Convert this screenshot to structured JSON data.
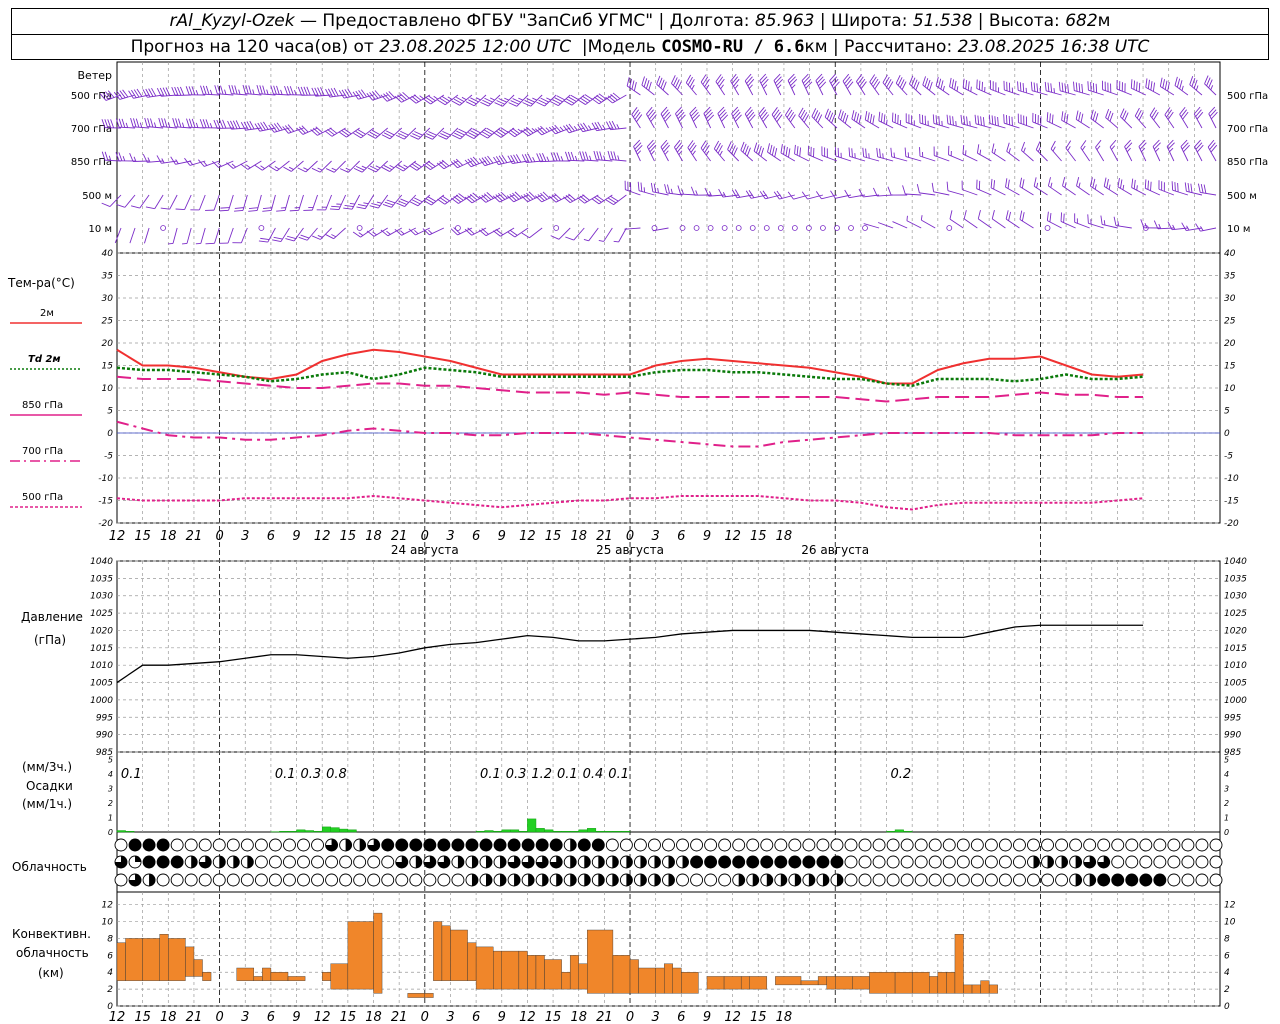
{
  "header": {
    "station": "rAl_Kyzyl-Ozek",
    "dash": " — ",
    "provider_label": "Предоставлено ФГБУ \"ЗапСиб УГМС\"",
    "lon_label": "Долгота:",
    "lon_value": "85.963",
    "lat_label": "Широта:",
    "lat_value": "51.538",
    "alt_label": "Высота:",
    "alt_value": "682",
    "alt_unit": "м",
    "forecast_prefix": "Прогноз на 120 часа(ов) от",
    "forecast_from": "23.08.2025 12:00 UTC",
    "model_label": "Модель",
    "model_name": "COSMO-RU / 6.6",
    "model_unit": "км",
    "calc_label": "Рассчитано:",
    "calc_time": "23.08.2025 16:38 UTC",
    "sep": "|"
  },
  "wind_panel": {
    "title": "Ветер",
    "levels": [
      "500 гПа",
      "700 гПа",
      "850 гПа",
      "500 м",
      "10 м"
    ]
  },
  "temp_panel": {
    "title": "Тем-ра(°C)",
    "legend": [
      {
        "label": "2м",
        "color": "#f03030",
        "style": "solid"
      },
      {
        "label": "Td 2м",
        "color": "#0a7a0a",
        "style": "dotted"
      },
      {
        "label": "850 гПа",
        "color": "#e0208a",
        "style": "dashed"
      },
      {
        "label": "700 гПа",
        "color": "#e0208a",
        "style": "dashdot"
      },
      {
        "label": "500 гПа",
        "color": "#e0208a",
        "style": "dotted"
      }
    ],
    "yticks": [
      "40",
      "35",
      "30",
      "25",
      "20",
      "15",
      "10",
      "5",
      "0",
      "-5",
      "-10",
      "-15",
      "-20"
    ]
  },
  "pressure_panel": {
    "title": "Давление",
    "unit": "(гПа)",
    "yticks": [
      "1040",
      "1035",
      "1030",
      "1025",
      "1020",
      "1015",
      "1010",
      "1005",
      "1000",
      "995",
      "990",
      "985"
    ]
  },
  "precip_panel": {
    "title_left": "(мм/3ч.)",
    "title_mid": "Осадки",
    "title_unit": "(мм/1ч.)",
    "yticks": [
      "5",
      "4",
      "3",
      "2",
      "1",
      "0"
    ],
    "labels": [
      {
        "hour": 0.5,
        "text": "0.1"
      },
      {
        "hour": 18.5,
        "text": "0.1"
      },
      {
        "hour": 21.5,
        "text": "0.3"
      },
      {
        "hour": 24.5,
        "text": "0.8"
      },
      {
        "hour": 42.5,
        "text": "0.1"
      },
      {
        "hour": 45.5,
        "text": "0.3"
      },
      {
        "hour": 48.5,
        "text": "1.2"
      },
      {
        "hour": 51.5,
        "text": "0.1"
      },
      {
        "hour": 54.5,
        "text": "0.4"
      },
      {
        "hour": 57.5,
        "text": "0.1"
      },
      {
        "hour": 90.5,
        "text": "0.2"
      }
    ]
  },
  "cloud_panel": {
    "title": "Облачность"
  },
  "conv_panel": {
    "title_1": "Конвективн.",
    "title_2": "облачность",
    "title_3": "(км)",
    "yticks": [
      "12",
      "10",
      "8",
      "6",
      "4",
      "2",
      "0"
    ]
  },
  "time_axis": {
    "hours": [
      "12",
      "15",
      "18",
      "21",
      "0",
      "3",
      "6",
      "9",
      "12",
      "15",
      "18",
      "21",
      "0",
      "3",
      "6",
      "9",
      "12",
      "15",
      "18",
      "21",
      "0",
      "3",
      "6",
      "9",
      "12",
      "15",
      "18"
    ],
    "dates": [
      {
        "hour": 24,
        "text": "24 августа"
      },
      {
        "hour": 48,
        "text": "25 августа"
      },
      {
        "hour": 72,
        "text": "26 августа"
      }
    ]
  },
  "colors": {
    "wind_barb": "#7b2cc8",
    "t2m": "#f03030",
    "td2m": "#0a7a0a",
    "upper_air": "#e0208a",
    "pressure": "#000000",
    "precip": "#22d022",
    "convective": "#f0862a",
    "grid": "#9a9a9a"
  },
  "chart_data": [
    {
      "type": "line",
      "title": "Тем-ра(°C)",
      "ylim": [
        -20,
        40
      ],
      "x_hours_from_start": [
        0,
        3,
        6,
        9,
        12,
        15,
        18,
        21,
        24,
        27,
        30,
        33,
        36,
        39,
        42,
        45,
        48,
        51,
        54,
        57,
        60,
        63,
        66,
        69,
        72,
        75,
        78,
        81,
        84,
        87,
        90,
        93,
        96,
        99,
        102,
        105,
        108,
        111,
        114,
        117,
        120
      ],
      "series": [
        {
          "name": "2м",
          "values": [
            18.5,
            15,
            15,
            14.5,
            13.5,
            12.5,
            12,
            13,
            16,
            17.5,
            18.5,
            18,
            17,
            16,
            14.5,
            13,
            13,
            13,
            13,
            13,
            13,
            15,
            16,
            16.5,
            16,
            15.5,
            15,
            14.5,
            13.5,
            12.5,
            11,
            11,
            14,
            15.5,
            16.5,
            16.5,
            17,
            15,
            13,
            12.5,
            13
          ]
        },
        {
          "name": "Td 2м",
          "values": [
            14.5,
            14,
            14,
            13.5,
            13,
            12.5,
            11.5,
            12,
            13,
            13.5,
            12,
            13,
            14.5,
            14,
            13.5,
            12.5,
            12.5,
            12.5,
            12.5,
            12.5,
            12.5,
            13.5,
            14,
            14,
            13.5,
            13.5,
            13,
            12.5,
            12,
            12,
            11,
            10.5,
            12,
            12,
            12,
            11.5,
            12,
            13,
            12,
            12,
            12.5
          ]
        },
        {
          "name": "850 гПа",
          "values": [
            12.5,
            12,
            12,
            12,
            11.5,
            11,
            10.5,
            10,
            10,
            10.5,
            11,
            11,
            10.5,
            10.5,
            10,
            9.5,
            9,
            9,
            9,
            8.5,
            9,
            8.5,
            8,
            8,
            8,
            8,
            8,
            8,
            8,
            7.5,
            7,
            7.5,
            8,
            8,
            8,
            8.5,
            9,
            8.5,
            8.5,
            8,
            8
          ]
        },
        {
          "name": "700 гПа",
          "values": [
            2.5,
            1,
            -0.5,
            -1,
            -1,
            -1.5,
            -1.5,
            -1,
            -0.5,
            0.5,
            1,
            0.5,
            0,
            0,
            -0.5,
            -0.5,
            0,
            0,
            0,
            -0.5,
            -1,
            -1.5,
            -2,
            -2.5,
            -3,
            -3,
            -2,
            -1.5,
            -1,
            -0.5,
            0,
            0,
            0,
            0,
            0,
            -0.5,
            -0.5,
            -0.5,
            -0.5,
            0,
            0
          ]
        },
        {
          "name": "500 гПа",
          "values": [
            -14.5,
            -15,
            -15,
            -15,
            -15,
            -14.5,
            -14.5,
            -14.5,
            -14.5,
            -14.5,
            -14,
            -14.5,
            -15,
            -15.5,
            -16,
            -16.5,
            -16,
            -15.5,
            -15,
            -15,
            -14.5,
            -14.5,
            -14,
            -14,
            -14,
            -14,
            -14.5,
            -15,
            -15,
            -15.5,
            -16.5,
            -17,
            -16,
            -15.5,
            -15.5,
            -15.5,
            -15.5,
            -15.5,
            -15.5,
            -15,
            -14.5
          ]
        }
      ]
    },
    {
      "type": "line",
      "title": "Давление",
      "ylabel": "(гПа)",
      "ylim": [
        985,
        1040
      ],
      "x_hours_from_start": [
        0,
        3,
        6,
        9,
        12,
        15,
        18,
        21,
        24,
        27,
        30,
        33,
        36,
        39,
        42,
        45,
        48,
        51,
        54,
        57,
        60,
        63,
        66,
        69,
        72,
        75,
        78,
        81,
        84,
        87,
        90,
        93,
        96,
        99,
        102,
        105,
        108,
        111,
        114,
        117,
        120
      ],
      "series": [
        {
          "name": "Давление",
          "values": [
            1005,
            1010,
            1010,
            1010.5,
            1011,
            1012,
            1013,
            1013,
            1012.5,
            1012,
            1012.5,
            1013.5,
            1015,
            1016,
            1016.5,
            1017.5,
            1018.5,
            1018,
            1017,
            1017,
            1017.5,
            1018,
            1019,
            1019.5,
            1020,
            1020,
            1020,
            1020,
            1019.5,
            1019,
            1018.5,
            1018,
            1018,
            1018,
            1019.5,
            1021,
            1021.5,
            1021.5,
            1021.5,
            1021.5,
            1021.5
          ]
        }
      ]
    },
    {
      "type": "bar",
      "title": "Осадки",
      "ylabel": "(мм/1ч.)",
      "ylim": [
        0,
        5
      ],
      "x_hours_from_start": [
        0,
        1,
        2,
        18,
        19,
        20,
        21,
        22,
        23,
        24,
        25,
        26,
        27,
        28,
        29,
        42,
        43,
        44,
        45,
        46,
        47,
        48,
        49,
        50,
        51,
        52,
        53,
        54,
        55,
        56,
        57,
        58,
        59,
        90,
        91,
        92
      ],
      "values": [
        0.1,
        0.05,
        0,
        0.02,
        0.05,
        0.05,
        0.15,
        0.1,
        0.05,
        0.35,
        0.3,
        0.2,
        0.15,
        0,
        0,
        0.05,
        0.1,
        0.05,
        0.15,
        0.15,
        0.05,
        0.9,
        0.25,
        0.15,
        0.05,
        0.05,
        0.05,
        0.15,
        0.25,
        0.05,
        0.05,
        0.05,
        0.05,
        0.05,
        0.15,
        0.05
      ]
    },
    {
      "type": "bar",
      "title": "Конвективн. облачность",
      "ylabel": "(км)",
      "ylim": [
        0,
        13
      ],
      "segments_hours": [
        [
          0,
          1
        ],
        [
          1,
          3
        ],
        [
          3,
          5
        ],
        [
          5,
          6
        ],
        [
          6,
          8
        ],
        [
          8,
          9
        ],
        [
          9,
          10
        ],
        [
          10,
          11
        ],
        [
          14,
          16
        ],
        [
          16,
          17
        ],
        [
          17,
          18
        ],
        [
          18,
          20
        ],
        [
          20,
          22
        ],
        [
          22,
          24
        ],
        [
          24,
          25
        ],
        [
          25,
          27
        ],
        [
          27,
          30
        ],
        [
          30,
          31
        ],
        [
          33,
          34
        ],
        [
          34,
          36
        ],
        [
          36,
          37
        ],
        [
          37,
          38
        ],
        [
          38,
          39
        ],
        [
          39,
          41
        ],
        [
          41,
          42
        ],
        [
          42,
          44
        ],
        [
          44,
          45
        ],
        [
          45,
          47
        ],
        [
          47,
          48
        ],
        [
          48,
          49
        ],
        [
          49,
          50
        ],
        [
          50,
          52
        ],
        [
          52,
          53
        ],
        [
          53,
          54
        ],
        [
          54,
          55
        ],
        [
          55,
          58
        ],
        [
          58,
          60
        ],
        [
          60,
          61
        ],
        [
          61,
          63
        ],
        [
          63,
          64
        ],
        [
          64,
          65
        ],
        [
          65,
          66
        ],
        [
          66,
          68
        ],
        [
          69,
          71
        ],
        [
          71,
          73
        ],
        [
          73,
          74
        ],
        [
          74,
          76
        ],
        [
          76,
          77
        ],
        [
          77,
          80
        ],
        [
          80,
          82
        ],
        [
          82,
          83
        ],
        [
          83,
          84
        ],
        [
          84,
          86
        ],
        [
          86,
          88
        ],
        [
          88,
          91
        ],
        [
          91,
          93
        ],
        [
          93,
          95
        ],
        [
          95,
          96
        ],
        [
          96,
          97
        ],
        [
          97,
          98
        ],
        [
          98,
          99
        ],
        [
          99,
          100
        ],
        [
          100,
          101
        ],
        [
          101,
          102
        ],
        [
          102,
          103
        ]
      ],
      "low_km": [
        3,
        3,
        3,
        3,
        3,
        3.5,
        3.5,
        3,
        3,
        3,
        3,
        3,
        3,
        3,
        3,
        2,
        2,
        1.5,
        1,
        1,
        1,
        3,
        3,
        3,
        3,
        2,
        2,
        2,
        2,
        2,
        2,
        2,
        2,
        2,
        2,
        1.5,
        1.5,
        1.5,
        1.5,
        1.5,
        1.5,
        1.5,
        1.5,
        2,
        2,
        2,
        2,
        2.5,
        2.5,
        2.5,
        2.5,
        2,
        2,
        2,
        1.5,
        1.5,
        1.5,
        1.5,
        1.5,
        1.5,
        1.5,
        1.5,
        1.5,
        1.5,
        1.5
      ],
      "top_km": [
        7.5,
        8,
        8,
        8.5,
        8,
        7,
        5.5,
        4,
        4.5,
        3.5,
        4.5,
        4,
        3.5,
        3,
        4,
        5,
        10,
        11,
        1,
        1.5,
        1.5,
        10,
        9.5,
        9,
        7.5,
        7,
        6.5,
        6.5,
        6.5,
        6,
        6,
        5.5,
        4,
        6,
        5,
        9,
        6,
        5.5,
        4.5,
        4.5,
        5,
        4.5,
        4,
        3.5,
        3.5,
        3.5,
        3.5,
        2,
        3.5,
        3,
        3.5,
        3.5,
        3.5,
        3.5,
        4,
        4,
        4,
        3.5,
        4,
        4,
        8.5,
        2.5,
        2.5,
        3,
        2.5
      ]
    }
  ]
}
